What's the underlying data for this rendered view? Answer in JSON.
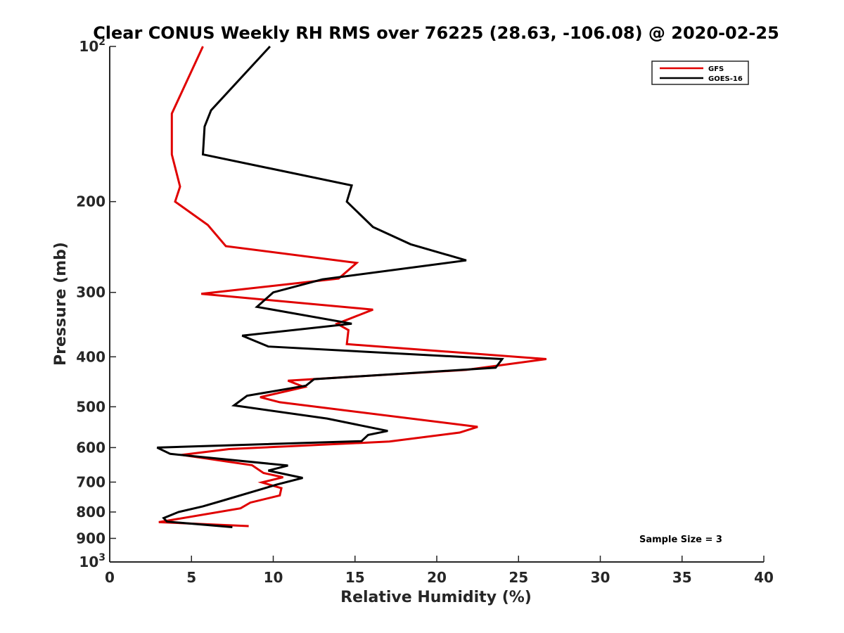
{
  "chart_data": {
    "type": "line",
    "title": "Clear CONUS Weekly RH RMS over 76225 (28.63, -106.08) @ 2020-02-25",
    "xlabel": "Relative Humidity (%)",
    "ylabel": "Pressure (mb)",
    "xlim": [
      0,
      40
    ],
    "ylim": [
      100,
      1000
    ],
    "yscale": "log",
    "yreversed": true,
    "x_ticks": [
      0,
      5,
      10,
      15,
      20,
      25,
      30,
      35,
      40
    ],
    "x_tick_labels": [
      "0",
      "5",
      "10",
      "15",
      "20",
      "25",
      "30",
      "35",
      "40"
    ],
    "y_ticks": [
      {
        "value": 100,
        "base": "10",
        "exp": "2"
      },
      {
        "value": 200,
        "label": "200"
      },
      {
        "value": 300,
        "label": "300"
      },
      {
        "value": 400,
        "label": "400"
      },
      {
        "value": 500,
        "label": "500"
      },
      {
        "value": 600,
        "label": "600"
      },
      {
        "value": 700,
        "label": "700"
      },
      {
        "value": 800,
        "label": "800"
      },
      {
        "value": 900,
        "label": "900"
      },
      {
        "value": 1000,
        "base": "10",
        "exp": "3"
      }
    ],
    "legend_position": "top-right",
    "series": [
      {
        "name": "GFS",
        "color": "#e00000",
        "points": [
          [
            5.7,
            100
          ],
          [
            3.8,
            135
          ],
          [
            3.8,
            162
          ],
          [
            4.3,
            187
          ],
          [
            4.0,
            200
          ],
          [
            6.0,
            222
          ],
          [
            7.1,
            244
          ],
          [
            15.1,
            263
          ],
          [
            14.0,
            282
          ],
          [
            5.6,
            302
          ],
          [
            16.1,
            324
          ],
          [
            13.9,
            345
          ],
          [
            14.6,
            355
          ],
          [
            14.5,
            378
          ],
          [
            26.7,
            404
          ],
          [
            21.8,
            424
          ],
          [
            10.9,
            445
          ],
          [
            11.9,
            458
          ],
          [
            9.2,
            479
          ],
          [
            10.4,
            490
          ],
          [
            22.5,
            547
          ],
          [
            21.4,
            561
          ],
          [
            17.1,
            584
          ],
          [
            7.3,
            604
          ],
          [
            4.4,
            620
          ],
          [
            8.7,
            649
          ],
          [
            9.4,
            672
          ],
          [
            10.6,
            685
          ],
          [
            9.3,
            701
          ],
          [
            10.5,
            719
          ],
          [
            10.4,
            743
          ],
          [
            8.6,
            767
          ],
          [
            8.0,
            787
          ],
          [
            3.0,
            837
          ],
          [
            8.5,
            852
          ]
        ]
      },
      {
        "name": "GOES-16",
        "color": "#000000",
        "points": [
          [
            9.8,
            100
          ],
          [
            6.2,
            133
          ],
          [
            5.8,
            143
          ],
          [
            5.7,
            162
          ],
          [
            14.8,
            186
          ],
          [
            14.5,
            200
          ],
          [
            16.1,
            224
          ],
          [
            18.4,
            242
          ],
          [
            21.8,
            260
          ],
          [
            13.0,
            283
          ],
          [
            10.0,
            300
          ],
          [
            9.0,
            320
          ],
          [
            14.8,
            345
          ],
          [
            8.1,
            364
          ],
          [
            9.7,
            382
          ],
          [
            24.0,
            404
          ],
          [
            23.6,
            420
          ],
          [
            12.5,
            442
          ],
          [
            12.0,
            455
          ],
          [
            8.4,
            476
          ],
          [
            7.6,
            497
          ],
          [
            13.3,
            527
          ],
          [
            17.0,
            557
          ],
          [
            15.8,
            567
          ],
          [
            15.4,
            583
          ],
          [
            2.9,
            600
          ],
          [
            3.7,
            617
          ],
          [
            10.9,
            650
          ],
          [
            9.7,
            665
          ],
          [
            11.8,
            687
          ],
          [
            10.2,
            708
          ],
          [
            6.8,
            762
          ],
          [
            5.7,
            780
          ],
          [
            4.2,
            800
          ],
          [
            3.3,
            822
          ],
          [
            3.5,
            835
          ],
          [
            7.5,
            856
          ]
        ]
      }
    ],
    "annotations": [
      {
        "text": "Sample Size = 3"
      }
    ]
  }
}
